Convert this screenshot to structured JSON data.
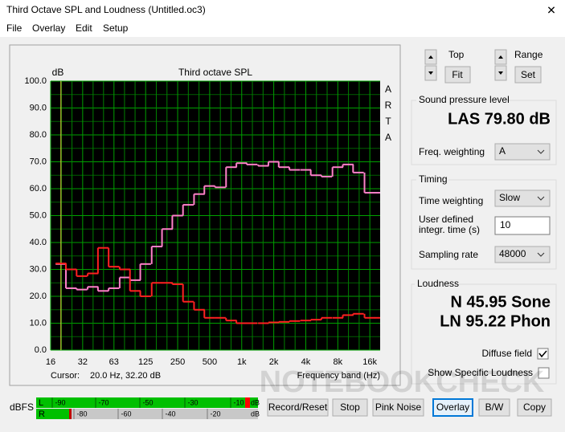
{
  "window": {
    "title": "Third Octave SPL and Loudness (Untitled.oc3)",
    "close": "✕"
  },
  "menu": [
    "File",
    "Overlay",
    "Edit",
    "Setup"
  ],
  "chart_data": {
    "type": "line",
    "title": "Third octave SPL",
    "y_label": "dB",
    "x_label": "Frequency band (Hz)",
    "side_label": "ARTA",
    "log_x": true,
    "grid": true,
    "xlim": [
      16,
      20000
    ],
    "ylim": [
      0,
      100
    ],
    "xticks": [
      16,
      32,
      63,
      125,
      250,
      500,
      {
        "value": 1000,
        "label": "1k"
      },
      {
        "value": 2000,
        "label": "2k"
      },
      {
        "value": 4000,
        "label": "4k"
      },
      {
        "value": 8000,
        "label": "8k"
      },
      {
        "value": 16000,
        "label": "16k"
      }
    ],
    "yticks": [
      {
        "value": 0,
        "label": "0.0"
      },
      {
        "value": 10,
        "label": "10.0"
      },
      {
        "value": 20,
        "label": "20.0"
      },
      {
        "value": 30,
        "label": "30.0"
      },
      {
        "value": 40,
        "label": "40.0"
      },
      {
        "value": 50,
        "label": "50.0"
      },
      {
        "value": 60,
        "label": "60.0"
      },
      {
        "value": 70,
        "label": "70.0"
      },
      {
        "value": 80,
        "label": "80.0"
      },
      {
        "value": 90,
        "label": "90.0"
      },
      {
        "value": 100,
        "label": "100.0"
      }
    ],
    "x": [
      20,
      25,
      31.5,
      40,
      50,
      63,
      80,
      100,
      125,
      160,
      200,
      250,
      315,
      400,
      500,
      630,
      800,
      1000,
      1250,
      1600,
      2000,
      2500,
      3150,
      4000,
      5000,
      6300,
      8000,
      10000,
      12500,
      16000,
      20000
    ],
    "series": [
      {
        "color": "#ff80c8",
        "values": [
          32,
          23,
          22.5,
          23.5,
          22,
          23,
          27,
          26,
          32,
          38.5,
          45,
          50,
          54,
          58,
          61,
          60.5,
          68,
          69.5,
          69,
          68.5,
          70,
          68,
          67,
          67,
          65,
          64.5,
          68,
          69,
          66,
          58.5,
          58.5
        ]
      },
      {
        "color": "#ff2020",
        "values": [
          32.2,
          30,
          27.5,
          28.5,
          38,
          31,
          30,
          22,
          20,
          25,
          25,
          24.5,
          18,
          15,
          12,
          12,
          11,
          10,
          10,
          10,
          10.3,
          10.5,
          10.8,
          11,
          11.3,
          12,
          12,
          13,
          13.5,
          12,
          12
        ]
      }
    ],
    "cursor": {
      "label": "Cursor:",
      "x": 20,
      "text": "20.0 Hz, 32.20 dB"
    }
  },
  "controls": {
    "top_label": "Top",
    "fit": "Fit",
    "range_label": "Range",
    "set": "Set"
  },
  "spl": {
    "group": "Sound pressure level",
    "reading": "LAS 79.80 dB",
    "freq_weighting_label": "Freq. weighting",
    "freq_weighting": "A"
  },
  "timing": {
    "group": "Timing",
    "time_weighting_label": "Time weighting",
    "time_weighting": "Slow",
    "integr_label_1": "User defined",
    "integr_label_2": "integr. time (s)",
    "integr_time": "10",
    "sampling_rate_label": "Sampling rate",
    "sampling_rate": "48000"
  },
  "loudness": {
    "group": "Loudness",
    "sone": "N 45.95 Sone",
    "phon": "LN 95.22 Phon",
    "diffuse_field": "Diffuse field",
    "show_specific": "Show Specific Loudness"
  },
  "meter": {
    "label": "dBFS",
    "l": "L",
    "r": "R",
    "l_scale": [
      "-90",
      "-70",
      "-50",
      "-30",
      "-10"
    ],
    "r_scale": [
      "-80",
      "-60",
      "-40",
      "-20"
    ],
    "l_end": "dB",
    "r_end": "dB"
  },
  "buttons": [
    "Record/Reset",
    "Stop",
    "Pink Noise",
    "Overlay",
    "B/W",
    "Copy"
  ],
  "watermark": "NOTEBOOKCHECK"
}
